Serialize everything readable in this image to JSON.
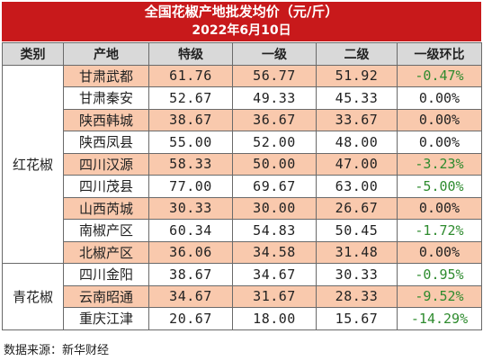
{
  "title": {
    "line1": "全国花椒产地批发均价（元/斤）",
    "line2": "2022年6月10日"
  },
  "headers": [
    "类别",
    "产地",
    "特级",
    "一级",
    "二级",
    "一级环比"
  ],
  "categories": {
    "red": "红花椒",
    "green": "青花椒"
  },
  "rows": [
    {
      "origin": "甘肃武都",
      "special": "61.76",
      "first": "56.77",
      "second": "51.92",
      "change": "-0.47%"
    },
    {
      "origin": "甘肃秦安",
      "special": "52.67",
      "first": "49.33",
      "second": "45.33",
      "change": "0.00%"
    },
    {
      "origin": "陕西韩城",
      "special": "38.67",
      "first": "36.67",
      "second": "33.67",
      "change": "0.00%"
    },
    {
      "origin": "陕西凤县",
      "special": "55.00",
      "first": "52.00",
      "second": "48.00",
      "change": "0.00%"
    },
    {
      "origin": "四川汉源",
      "special": "58.33",
      "first": "50.00",
      "second": "47.00",
      "change": "-3.23%"
    },
    {
      "origin": "四川茂县",
      "special": "77.00",
      "first": "69.67",
      "second": "63.00",
      "change": "-5.00%"
    },
    {
      "origin": "山西芮城",
      "special": "30.33",
      "first": "30.00",
      "second": "26.67",
      "change": "0.00%"
    },
    {
      "origin": "南椒产区",
      "special": "60.34",
      "first": "54.83",
      "second": "50.45",
      "change": "-1.72%"
    },
    {
      "origin": "北椒产区",
      "special": "36.06",
      "first": "34.58",
      "second": "31.48",
      "change": "0.00%"
    },
    {
      "origin": "四川金阳",
      "special": "38.67",
      "first": "34.67",
      "second": "30.33",
      "change": "-0.95%"
    },
    {
      "origin": "云南昭通",
      "special": "34.67",
      "first": "31.67",
      "second": "28.33",
      "change": "-9.52%"
    },
    {
      "origin": "重庆江津",
      "special": "20.67",
      "first": "18.00",
      "second": "15.67",
      "change": "-14.29%"
    }
  ],
  "source": "数据来源：新华财经",
  "colors": {
    "title_bg": "#c8191b",
    "row_shade": "#f9c9ad",
    "header_bg": "#d9d9d9",
    "negative": "#2e8b2e"
  }
}
